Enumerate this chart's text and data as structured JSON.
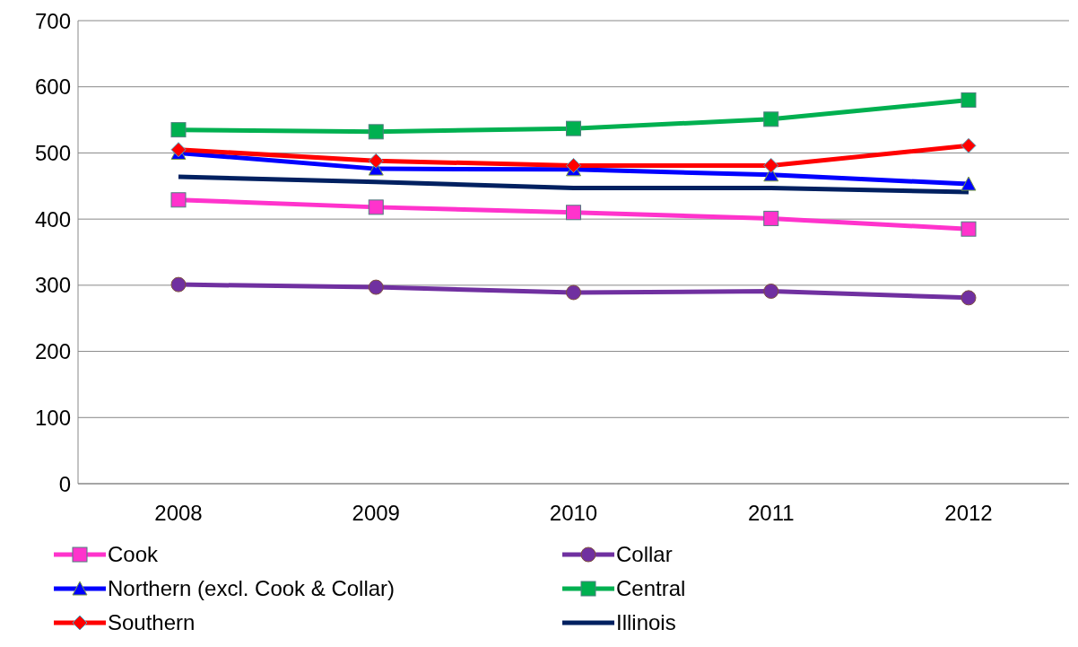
{
  "chart_data": {
    "type": "line",
    "categories": [
      "2008",
      "2009",
      "2010",
      "2011",
      "2012"
    ],
    "series": [
      {
        "name": "Cook",
        "color": "#ff33cc",
        "marker": "square",
        "values": [
          429,
          418,
          410,
          401,
          385
        ]
      },
      {
        "name": "Collar",
        "color": "#7030a0",
        "marker": "circle",
        "values": [
          301,
          297,
          289,
          291,
          281
        ]
      },
      {
        "name": "Northern (excl. Cook & Collar)",
        "color": "#0000ff",
        "marker": "triangle",
        "values": [
          500,
          476,
          475,
          467,
          453
        ]
      },
      {
        "name": "Central",
        "color": "#00b050",
        "marker": "square",
        "values": [
          535,
          532,
          537,
          551,
          580
        ]
      },
      {
        "name": "Southern",
        "color": "#ff0000",
        "marker": "diamond",
        "values": [
          505,
          488,
          481,
          481,
          511
        ]
      },
      {
        "name": "Illinois",
        "color": "#002060",
        "marker": "none",
        "values": [
          464,
          456,
          447,
          447,
          441
        ]
      }
    ],
    "ylim": [
      0,
      700
    ],
    "yticks": [
      0,
      100,
      200,
      300,
      400,
      500,
      600,
      700
    ],
    "grid": "y",
    "legend": "bottom"
  }
}
